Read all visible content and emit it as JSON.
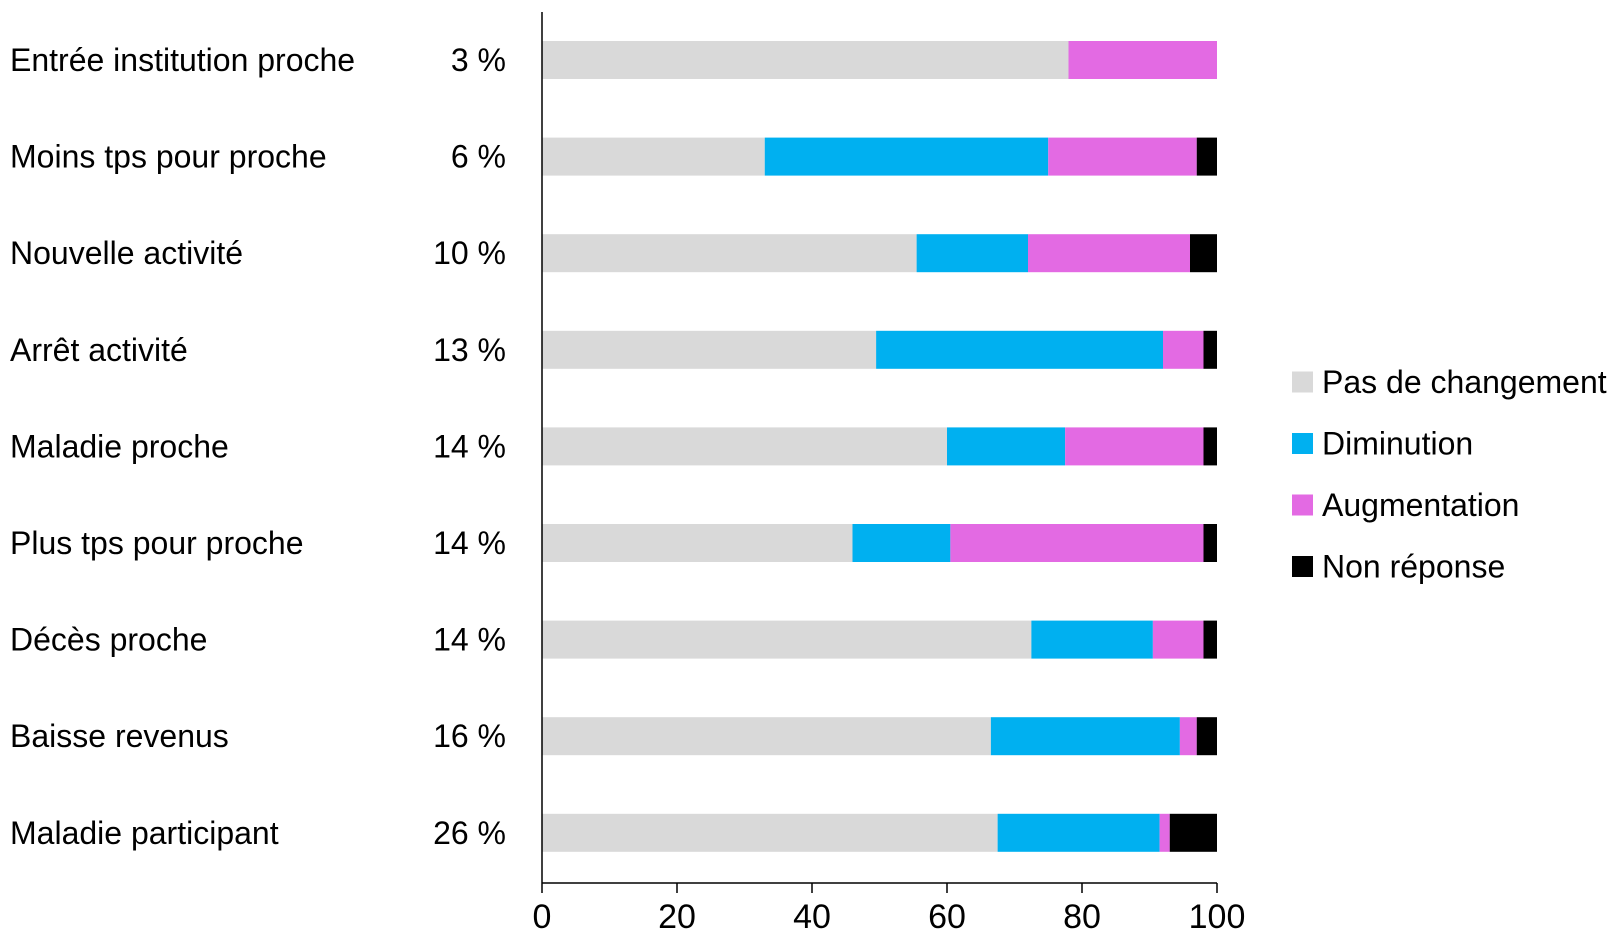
{
  "chart_data": {
    "type": "bar",
    "orientation": "horizontal",
    "stacked": true,
    "categories": [
      "Entrée institution proche",
      "Moins tps pour proche",
      "Nouvelle activité",
      "Arrêt activité",
      "Maladie proche",
      "Plus tps pour proche",
      "Décès proche",
      "Baisse revenus",
      "Maladie participant"
    ],
    "category_percent_labels": [
      "3 %",
      "6 %",
      "10 %",
      "13 %",
      "14 %",
      "14 %",
      "14 %",
      "16 %",
      "26 %"
    ],
    "series": [
      {
        "name": "Pas de changement",
        "color": "#d9d9d9",
        "values": [
          78,
          33,
          55.5,
          49.5,
          60,
          46,
          72.5,
          66.5,
          67.5
        ]
      },
      {
        "name": "Diminution",
        "color": "#00b0f0",
        "values": [
          0,
          42,
          16.5,
          42.5,
          17.5,
          14.5,
          18,
          28,
          24
        ]
      },
      {
        "name": "Augmentation",
        "color": "#e36ae3",
        "values": [
          22,
          22,
          24,
          6,
          20.5,
          37.5,
          7.5,
          2.5,
          1.5
        ]
      },
      {
        "name": "Non réponse",
        "color": "#000000",
        "values": [
          0,
          3,
          4,
          2,
          2,
          2,
          2,
          3,
          7
        ]
      }
    ],
    "xlim": [
      0,
      100
    ],
    "xticks": [
      0,
      20,
      40,
      60,
      80,
      100
    ],
    "title": "",
    "xlabel": "",
    "ylabel": "",
    "grid": false,
    "legend_position": "right"
  }
}
